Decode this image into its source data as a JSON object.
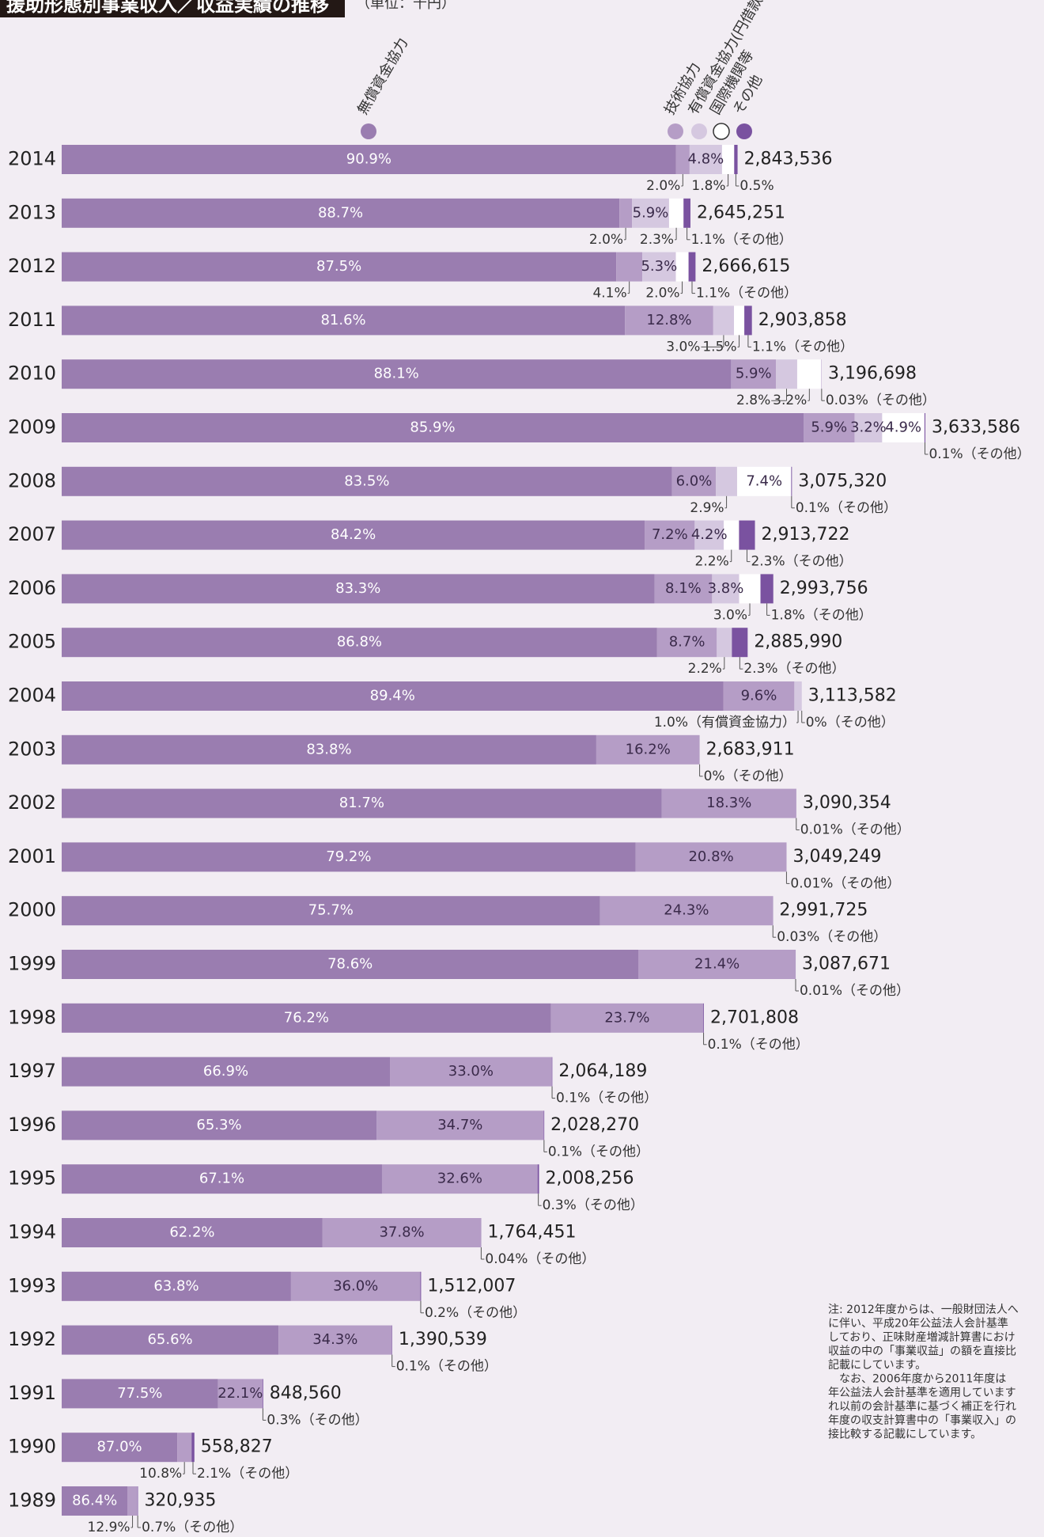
{
  "chart_data": {
    "type": "bar",
    "orientation": "horizontal",
    "stacked": true,
    "title": "援助形態別事業収入／収益実績の推移",
    "unit_note": "（単位：千円）",
    "categories": [
      "2014",
      "2013",
      "2012",
      "2011",
      "2010",
      "2009",
      "2008",
      "2007",
      "2006",
      "2005",
      "2004",
      "2003",
      "2002",
      "2001",
      "2000",
      "1999",
      "1998",
      "1997",
      "1996",
      "1995",
      "1994",
      "1993",
      "1992",
      "1991",
      "1990",
      "1989"
    ],
    "totals": {
      "values": [
        2843536,
        2645251,
        2666615,
        2903858,
        3196698,
        3633586,
        3075320,
        2913722,
        2993756,
        2885990,
        3113582,
        2683911,
        3090354,
        3049249,
        2991725,
        3087671,
        2701808,
        2064189,
        2028270,
        2008256,
        1764451,
        1512007,
        1390539,
        848560,
        558827,
        320935
      ],
      "value_labels": [
        "2,843,536",
        "2,645,251",
        "2,666,615",
        "2,903,858",
        "3,196,698",
        "3,633,586",
        "3,075,320",
        "2,913,722",
        "2,993,756",
        "2,885,990",
        "3,113,582",
        "2,683,911",
        "3,090,354",
        "3,049,249",
        "2,991,725",
        "3,087,671",
        "2,701,808",
        "2,064,189",
        "2,028,270",
        "2,008,256",
        "1,764,451",
        "1,512,007",
        "1,390,539",
        "848,560",
        "558,827",
        "320,935"
      ]
    },
    "series": [
      {
        "name": "無償資金協力",
        "color": "#9a7db0",
        "values": [
          90.9,
          88.7,
          87.5,
          81.6,
          88.1,
          85.9,
          83.5,
          84.2,
          83.3,
          86.8,
          89.4,
          83.8,
          81.7,
          79.2,
          75.7,
          78.6,
          76.2,
          66.9,
          65.3,
          67.1,
          62.2,
          63.8,
          65.6,
          77.5,
          87.0,
          86.4
        ],
        "value_labels": [
          "90.9%",
          "88.7%",
          "87.5%",
          "81.6%",
          "88.1%",
          "85.9%",
          "83.5%",
          "84.2%",
          "83.3%",
          "86.8%",
          "89.4%",
          "83.8%",
          "81.7%",
          "79.2%",
          "75.7%",
          "78.6%",
          "76.2%",
          "66.9%",
          "65.3%",
          "67.1%",
          "62.2%",
          "63.8%",
          "65.6%",
          "77.5%",
          "87.0%",
          "86.4%"
        ]
      },
      {
        "name": "技術協力",
        "color": "#b59dc6",
        "values": [
          2.0,
          2.0,
          4.1,
          12.8,
          5.9,
          5.9,
          6.0,
          7.2,
          8.1,
          8.7,
          9.6,
          16.2,
          18.3,
          20.8,
          24.3,
          21.4,
          23.7,
          33.0,
          34.7,
          32.6,
          37.8,
          36.0,
          34.3,
          22.1,
          10.8,
          12.9
        ],
        "value_labels": [
          "2.0%",
          "2.0%",
          "4.1%",
          "12.8%",
          "5.9%",
          "5.9%",
          "6.0%",
          "7.2%",
          "8.1%",
          "8.7%",
          "9.6%",
          "16.2%",
          "18.3%",
          "20.8%",
          "24.3%",
          "21.4%",
          "23.7%",
          "33.0%",
          "34.7%",
          "32.6%",
          "37.8%",
          "36.0%",
          "34.3%",
          "22.1%",
          "10.8%",
          "12.9%"
        ]
      },
      {
        "name": "有償資金協力(円借款)",
        "color": "#d5c8e0",
        "values": [
          4.8,
          5.9,
          5.3,
          3.0,
          2.8,
          3.2,
          2.9,
          4.2,
          3.8,
          2.2,
          1.0,
          null,
          null,
          null,
          null,
          null,
          null,
          null,
          null,
          null,
          null,
          null,
          null,
          null,
          null,
          null
        ],
        "value_labels": [
          "4.8%",
          "5.9%",
          "5.3%",
          "3.0%",
          "2.8%",
          "3.2%",
          "2.9%",
          "4.2%",
          "3.8%",
          "2.2%",
          "1.0%（有償資金協力）",
          null,
          null,
          null,
          null,
          null,
          null,
          null,
          null,
          null,
          null,
          null,
          null,
          null,
          null,
          null
        ]
      },
      {
        "name": "国際機関等",
        "color": "#ffffff",
        "values": [
          1.8,
          2.3,
          2.0,
          1.5,
          3.2,
          4.9,
          7.4,
          2.2,
          3.0,
          null,
          null,
          null,
          null,
          null,
          null,
          null,
          null,
          null,
          null,
          null,
          null,
          null,
          null,
          null,
          null,
          null
        ],
        "value_labels": [
          "1.8%",
          "2.3%",
          "2.0%",
          "1.5%",
          "3.2%",
          "4.9%",
          "7.4%",
          "2.2%",
          "3.0%",
          null,
          null,
          null,
          null,
          null,
          null,
          null,
          null,
          null,
          null,
          null,
          null,
          null,
          null,
          null,
          null,
          null
        ]
      },
      {
        "name": "その他",
        "color": "#7a52a0",
        "values": [
          0.5,
          1.1,
          1.1,
          1.1,
          0.03,
          0.1,
          0.1,
          2.3,
          1.8,
          2.3,
          0,
          0,
          0.01,
          0.01,
          0.03,
          0.01,
          0.1,
          0.1,
          0.1,
          0.3,
          0.04,
          0.2,
          0.1,
          0.3,
          2.1,
          0.7
        ],
        "value_labels": [
          "0.5%",
          "1.1%（その他）",
          "1.1%（その他）",
          "1.1%（その他）",
          "0.03%（その他）",
          "0.1%（その他）",
          "0.1%（その他）",
          "2.3%（その他）",
          "1.8%（その他）",
          "2.3%（その他）",
          "0%（その他）",
          "0%（その他）",
          "0.01%（その他）",
          "0.01%（その他）",
          "0.03%（その他）",
          "0.01%（その他）",
          "0.1%（その他）",
          "0.1%（その他）",
          "0.1%（その他）",
          "0.3%（その他）",
          "0.04%（その他）",
          "0.2%（その他）",
          "0.1%（その他）",
          "0.3%（その他）",
          "2.1%（その他）",
          "0.7%（その他）"
        ]
      }
    ],
    "notes": [
      "注: 2012年度からは、一般財団法人へ",
      "に伴い、平成20年公益法人会計基準",
      "しており、正味財産増減計算書におけ",
      "収益の中の「事業収益」の額を直接比",
      "記載にしています。",
      "　なお、2006年度から2011年度は",
      "年公益法人会計基準を適用しています",
      "れ以前の会計基準に基づく補正を行れ",
      "年度の収支計算書中の「事業収入」の",
      "接比較する記載にしています。"
    ]
  }
}
